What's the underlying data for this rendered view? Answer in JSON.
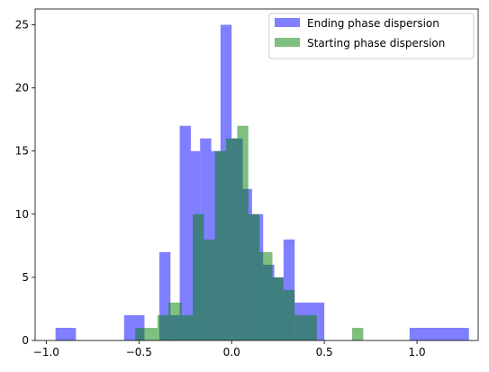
{
  "chart_data": {
    "type": "bar",
    "title": "",
    "xlabel": "",
    "ylabel": "",
    "xlim": [
      -1.06,
      1.33
    ],
    "ylim": [
      0,
      26.25
    ],
    "x_ticks": [
      -1.0,
      -0.5,
      0.0,
      0.5,
      1.0
    ],
    "x_tick_labels": [
      "−1.0",
      "−0.5",
      "0.0",
      "0.5",
      "1.0"
    ],
    "y_ticks": [
      0,
      5,
      10,
      15,
      20,
      25
    ],
    "y_tick_labels": [
      "0",
      "5",
      "10",
      "15",
      "20",
      "25"
    ],
    "grid": false,
    "legend_position": "top-right",
    "series": [
      {
        "name": "Ending phase dispersion",
        "color": "#0000ff",
        "opacity": 0.5,
        "bins": [
          {
            "x0": -0.95,
            "x1": -0.84,
            "count": 1
          },
          {
            "x0": -0.58,
            "x1": -0.47,
            "count": 2
          },
          {
            "x0": -0.39,
            "x1": -0.33,
            "count": 7
          },
          {
            "x0": -0.33,
            "x1": -0.28,
            "count": 2
          },
          {
            "x0": -0.28,
            "x1": -0.22,
            "count": 17
          },
          {
            "x0": -0.22,
            "x1": -0.17,
            "count": 15
          },
          {
            "x0": -0.17,
            "x1": -0.11,
            "count": 16
          },
          {
            "x0": -0.11,
            "x1": -0.06,
            "count": 15
          },
          {
            "x0": -0.06,
            "x1": 0.0,
            "count": 25
          },
          {
            "x0": 0.0,
            "x1": 0.06,
            "count": 16
          },
          {
            "x0": 0.06,
            "x1": 0.11,
            "count": 12
          },
          {
            "x0": 0.11,
            "x1": 0.17,
            "count": 10
          },
          {
            "x0": 0.17,
            "x1": 0.23,
            "count": 6
          },
          {
            "x0": 0.23,
            "x1": 0.28,
            "count": 5
          },
          {
            "x0": 0.28,
            "x1": 0.34,
            "count": 8
          },
          {
            "x0": 0.34,
            "x1": 0.4,
            "count": 3
          },
          {
            "x0": 0.4,
            "x1": 0.5,
            "count": 3
          },
          {
            "x0": 0.96,
            "x1": 1.28,
            "count": 1
          }
        ]
      },
      {
        "name": "Starting phase dispersion",
        "color": "#008000",
        "opacity": 0.5,
        "bins": [
          {
            "x0": -0.52,
            "x1": -0.4,
            "count": 1
          },
          {
            "x0": -0.4,
            "x1": -0.34,
            "count": 2
          },
          {
            "x0": -0.34,
            "x1": -0.27,
            "count": 3
          },
          {
            "x0": -0.27,
            "x1": -0.21,
            "count": 2
          },
          {
            "x0": -0.21,
            "x1": -0.15,
            "count": 10
          },
          {
            "x0": -0.15,
            "x1": -0.09,
            "count": 8
          },
          {
            "x0": -0.09,
            "x1": -0.03,
            "count": 15
          },
          {
            "x0": -0.03,
            "x1": 0.03,
            "count": 16
          },
          {
            "x0": 0.03,
            "x1": 0.09,
            "count": 17
          },
          {
            "x0": 0.09,
            "x1": 0.15,
            "count": 10
          },
          {
            "x0": 0.15,
            "x1": 0.22,
            "count": 7
          },
          {
            "x0": 0.22,
            "x1": 0.28,
            "count": 5
          },
          {
            "x0": 0.28,
            "x1": 0.34,
            "count": 4
          },
          {
            "x0": 0.34,
            "x1": 0.46,
            "count": 2
          },
          {
            "x0": 0.46,
            "x1": 0.65,
            "count": 0
          },
          {
            "x0": 0.65,
            "x1": 0.71,
            "count": 1
          }
        ]
      }
    ]
  }
}
